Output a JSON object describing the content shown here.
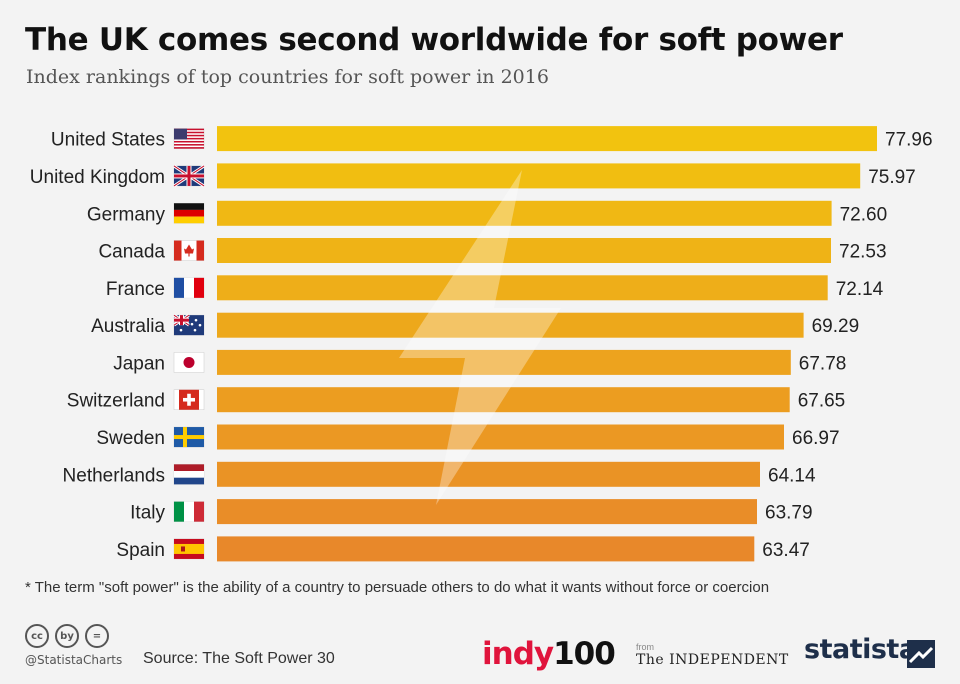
{
  "title": "The UK comes second worldwide for soft power",
  "subtitle": "Index rankings of top countries for soft power in 2016",
  "footnote": "* The term \"soft power\" is the ability of a country to persuade others to do what it wants without force or coercion",
  "footer": {
    "handle": "@StatistaCharts",
    "source": "Source: The Soft Power 30",
    "cc_icons": [
      "cc",
      "by",
      "="
    ],
    "indy_part1": "indy",
    "indy_part2": "100",
    "independent_from": "from",
    "independent": "The INDEPENDENT",
    "statista": "statista"
  },
  "chart_data": {
    "type": "bar",
    "orientation": "horizontal",
    "title": "The UK comes second worldwide for soft power",
    "subtitle": "Index rankings of top countries for soft power in 2016",
    "categories": [
      "United States",
      "United Kingdom",
      "Germany",
      "Canada",
      "France",
      "Australia",
      "Japan",
      "Switzerland",
      "Sweden",
      "Netherlands",
      "Italy",
      "Spain"
    ],
    "values": [
      77.96,
      75.97,
      72.6,
      72.53,
      72.14,
      69.29,
      67.78,
      67.65,
      66.97,
      64.14,
      63.79,
      63.47
    ],
    "value_labels": [
      "77.96",
      "75.97",
      "72.60",
      "72.53",
      "72.14",
      "69.29",
      "67.78",
      "67.65",
      "66.97",
      "64.14",
      "63.79",
      "63.47"
    ],
    "flags": [
      "us",
      "uk",
      "de",
      "ca",
      "fr",
      "au",
      "jp",
      "ch",
      "se",
      "nl",
      "it",
      "es"
    ],
    "colors": {
      "top": "#f2c30f",
      "bottom": "#e8882a"
    },
    "xlim": [
      0,
      77.96
    ],
    "xlabel": "",
    "ylabel": ""
  }
}
